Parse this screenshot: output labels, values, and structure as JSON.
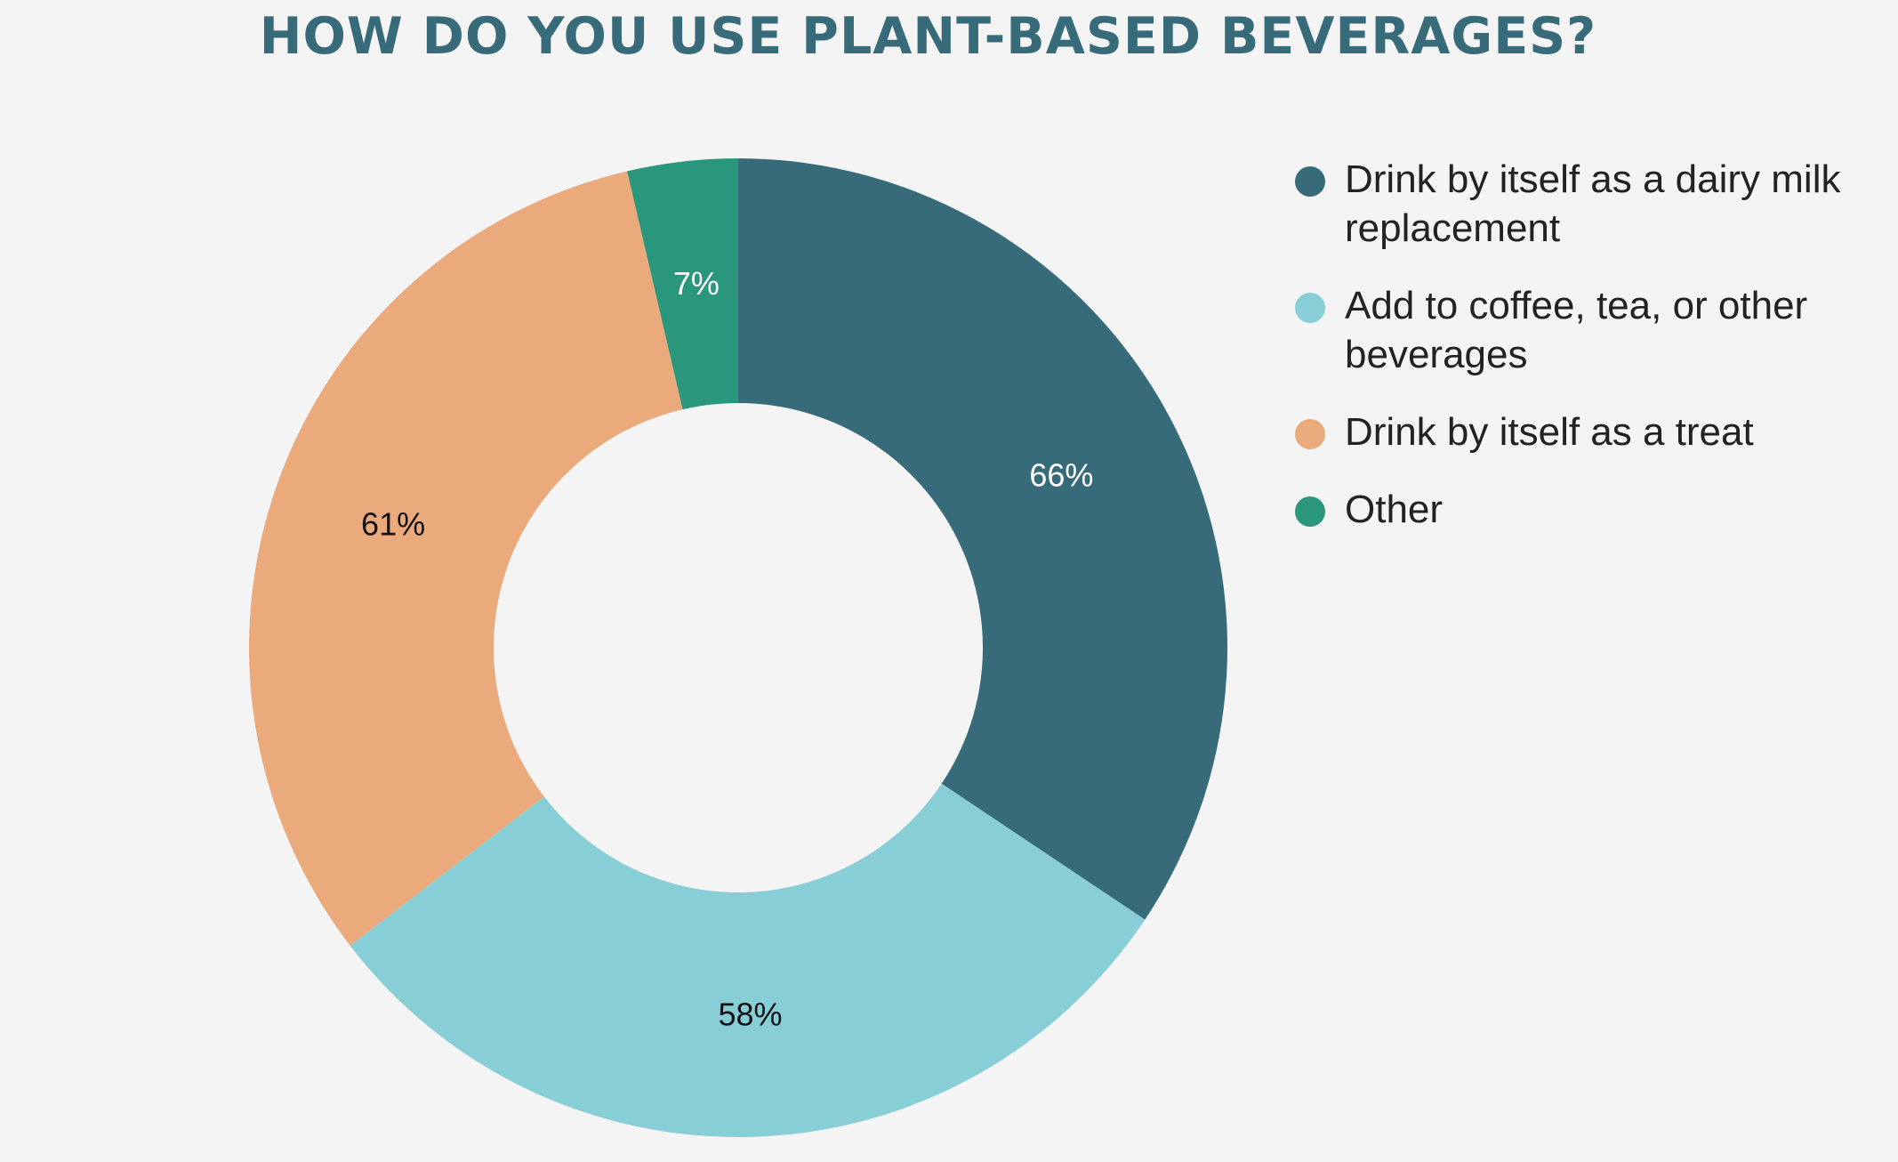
{
  "title": "HOW DO YOU USE PLANT-BASED BEVERAGES?",
  "chart_data": {
    "type": "pie",
    "title": "HOW DO YOU USE PLANT-BASED BEVERAGES?",
    "legend_position": "right",
    "slices": [
      {
        "label": "Drink by itself as a dairy milk replacement",
        "value": 66,
        "value_label": "66%",
        "color": "#386b79",
        "label_color": "#ffffff"
      },
      {
        "label": "Add to coffee, tea, or other beverages",
        "value": 58,
        "value_label": "58%",
        "color": "#88ced6",
        "label_color": "#111111"
      },
      {
        "label": "Drink by itself as a treat",
        "value": 61,
        "value_label": "61%",
        "color": "#eaaa7c",
        "label_color": "#111111"
      },
      {
        "label": "Other",
        "value": 7,
        "value_label": "7%",
        "color": "#2a977c",
        "label_color": "#ffffff"
      }
    ]
  }
}
